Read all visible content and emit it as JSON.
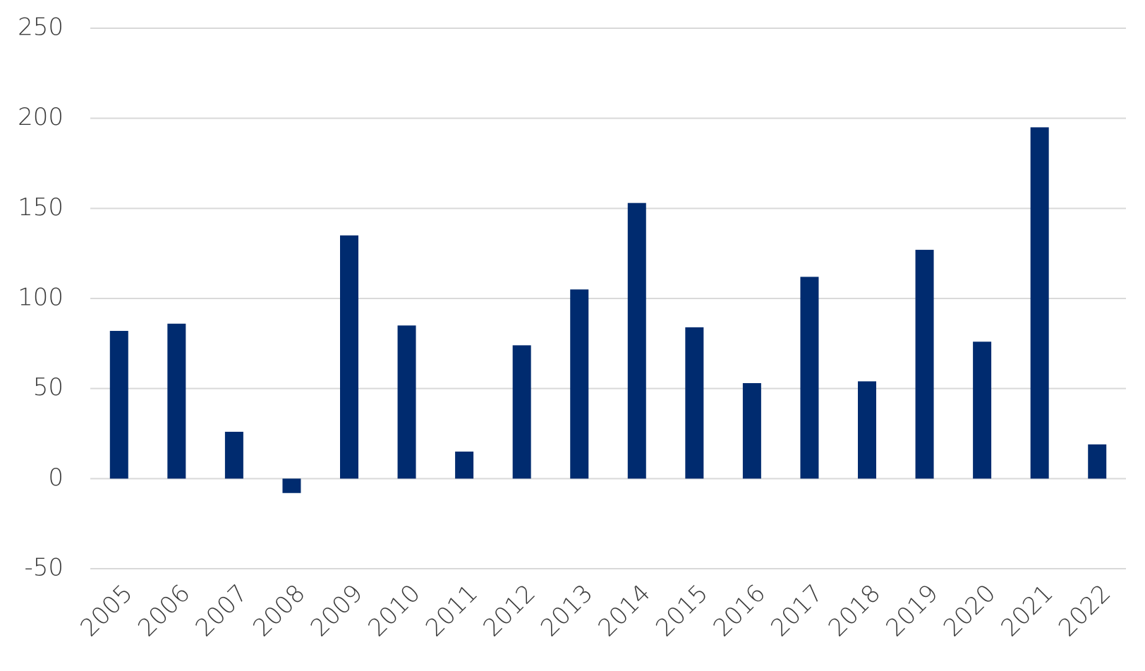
{
  "chart_data": {
    "type": "bar",
    "categories": [
      "2005",
      "2006",
      "2007",
      "2008",
      "2009",
      "2010",
      "2011",
      "2012",
      "2013",
      "2014",
      "2015",
      "2016",
      "2017",
      "2018",
      "2019",
      "2020",
      "2021",
      "2022"
    ],
    "values": [
      82,
      86,
      26,
      -8,
      135,
      85,
      15,
      74,
      105,
      153,
      84,
      53,
      112,
      54,
      127,
      76,
      195,
      19
    ],
    "color": "#002b6f",
    "ylim": [
      -50,
      250
    ],
    "yticks": [
      -50,
      0,
      50,
      100,
      150,
      200,
      250
    ],
    "grid": true
  }
}
